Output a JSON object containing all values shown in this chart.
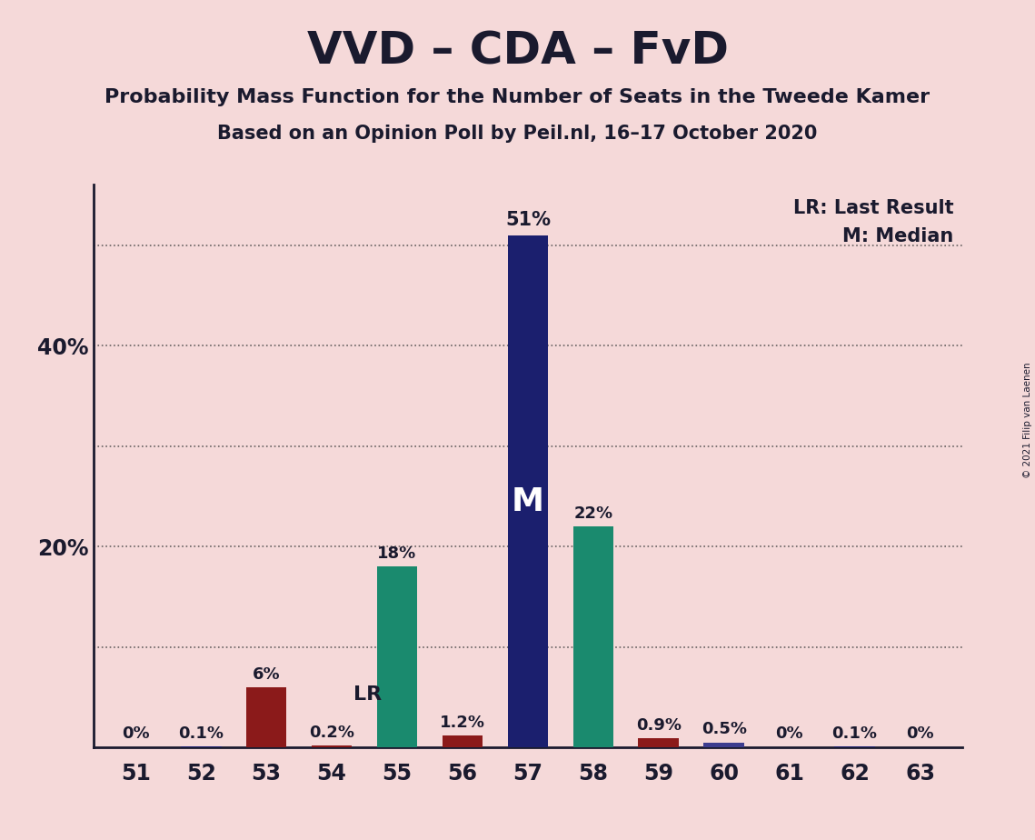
{
  "title": "VVD – CDA – FvD",
  "subtitle1": "Probability Mass Function for the Number of Seats in the Tweede Kamer",
  "subtitle2": "Based on an Opinion Poll by Peil.nl, 16–17 October 2020",
  "copyright": "© 2021 Filip van Laenen",
  "seats": [
    51,
    52,
    53,
    54,
    55,
    56,
    57,
    58,
    59,
    60,
    61,
    62,
    63
  ],
  "probabilities": [
    0.0,
    0.1,
    6.0,
    0.2,
    18.0,
    1.2,
    51.0,
    22.0,
    0.9,
    0.5,
    0.0,
    0.1,
    0.0
  ],
  "labels": [
    "0%",
    "0.1%",
    "6%",
    "0.2%",
    "18%",
    "1.2%",
    "51%",
    "22%",
    "0.9%",
    "0.5%",
    "0%",
    "0.1%",
    "0%"
  ],
  "median_seat": 57,
  "last_result_seat": 54,
  "color_map": {
    "51": "#1B1F6E",
    "52": "#1B1F6E",
    "53": "#8B1A1A",
    "54": "#8B1A1A",
    "55": "#1A8A6E",
    "56": "#8B1A1A",
    "57": "#1B1F6E",
    "58": "#1A8A6E",
    "59": "#8B1A1A",
    "60": "#3D3D8F",
    "61": "#1B1F6E",
    "62": "#1B1F6E",
    "63": "#1B1F6E"
  },
  "background_color": "#F5D9D9",
  "ylim_max": 56,
  "ytick_vals": [
    10,
    20,
    30,
    40,
    50
  ],
  "ytick_labels_shown": {
    "20": "20%",
    "40": "40%"
  },
  "legend_lr": "LR: Last Result",
  "legend_m": "M: Median",
  "text_color": "#1A1A2E",
  "grid_dotted_vals": [
    10,
    20,
    30,
    40,
    50
  ]
}
